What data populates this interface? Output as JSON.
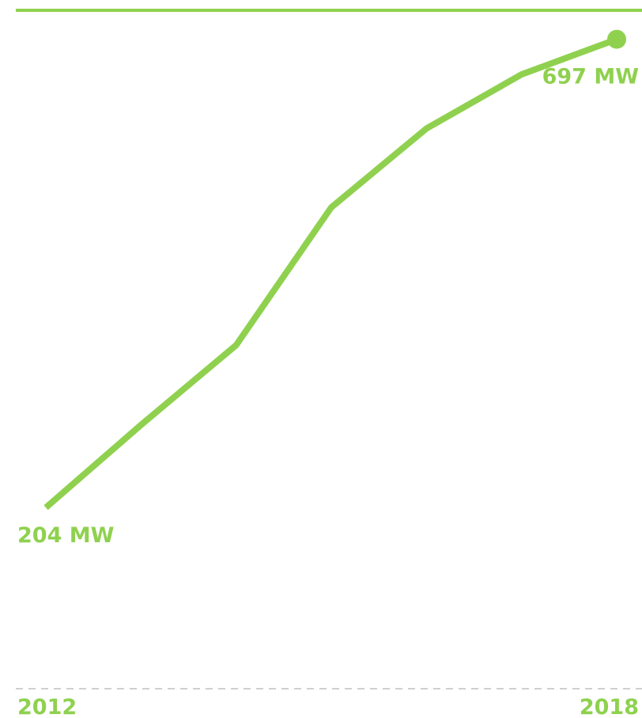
{
  "colors": {
    "accent": "#8fd14f",
    "baseline": "#cfcfcf"
  },
  "chart_data": {
    "type": "line",
    "x": [
      2012,
      2013,
      2014,
      2015,
      2016,
      2017,
      2018
    ],
    "series": [
      {
        "values": [
          204,
          291,
          375,
          520,
          603,
          660,
          697
        ]
      }
    ],
    "xlim": [
      2012,
      2018
    ],
    "ylim": [
      0,
      720
    ],
    "tick_labels": [
      "2012",
      "2018"
    ],
    "data_labels": [
      "204 MW",
      "697 MW"
    ],
    "grid": false,
    "endpoint_marker": true
  }
}
